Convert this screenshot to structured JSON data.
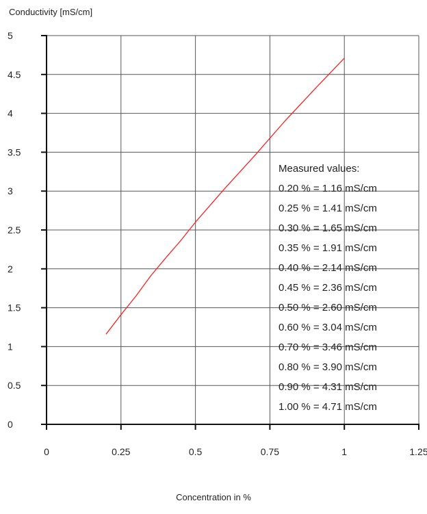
{
  "chart_data": {
    "type": "line",
    "title": "",
    "ylabel": "Conductivity [mS/cm]",
    "xlabel": "Concentration  in %",
    "xlim": [
      0,
      1.25
    ],
    "ylim": [
      0,
      5
    ],
    "x_ticks": [
      0,
      0.25,
      0.5,
      0.75,
      1,
      1.25
    ],
    "x_tick_labels": [
      "0",
      "0.25",
      "0.5",
      "0.75",
      "1",
      "1.25"
    ],
    "y_ticks": [
      0,
      0.5,
      1,
      1.5,
      2,
      2.5,
      3,
      3.5,
      4,
      4.5,
      5
    ],
    "y_tick_labels": [
      "0",
      "0.5",
      "1",
      "1.5",
      "2",
      "2.5",
      "3",
      "3.5",
      "4",
      "4.5",
      "5"
    ],
    "grid": true,
    "series": [
      {
        "color": "#ff2020",
        "x": [
          0.2,
          0.25,
          0.3,
          0.35,
          0.4,
          0.45,
          0.5,
          0.6,
          0.7,
          0.8,
          0.9,
          1.0
        ],
        "y": [
          1.16,
          1.41,
          1.65,
          1.91,
          2.14,
          2.36,
          2.6,
          3.04,
          3.46,
          3.9,
          4.31,
          4.71
        ]
      }
    ],
    "annotation": {
      "heading": "Measured values:",
      "lines": [
        "0.20 % = 1.16 mS/cm",
        "0.25 % = 1.41 mS/cm",
        "0.30 % = 1.65 mS/cm",
        "0.35 % = 1.91 mS/cm",
        "0.40 % = 2.14 mS/cm",
        "0.45 % = 2.36 mS/cm",
        "0.50 % = 2.60 mS/cm",
        "0.60 % = 3.04 mS/cm",
        "0.70 % = 3.46 mS/cm",
        "0.80 % = 3.90 mS/cm",
        "0.90 % = 4.31 mS/cm",
        "1.00 % = 4.71 mS/cm"
      ]
    }
  }
}
